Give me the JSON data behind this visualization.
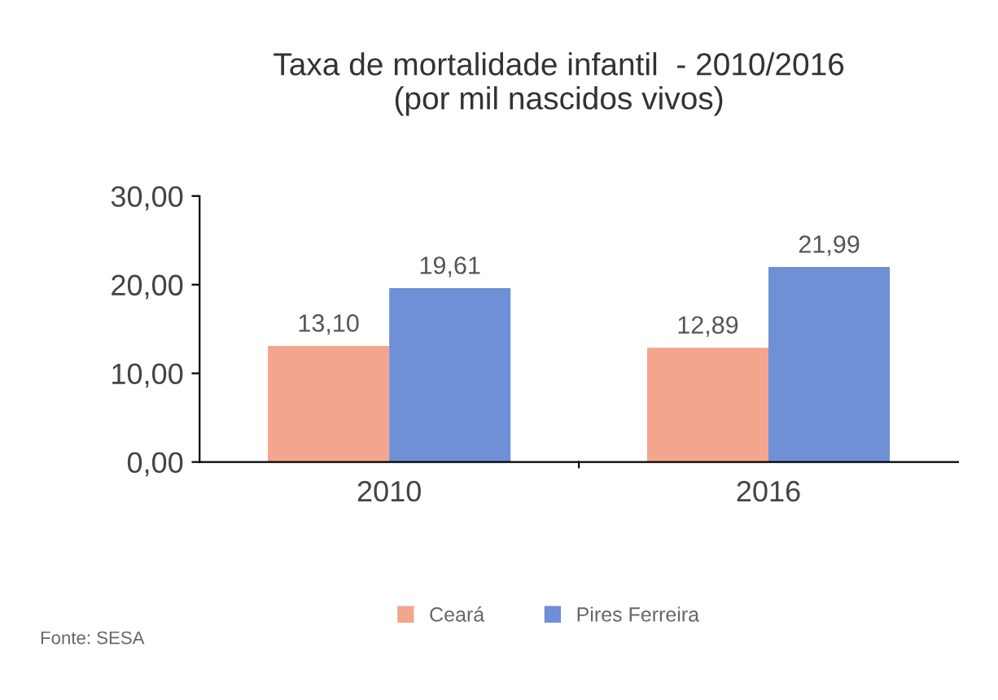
{
  "chart_data": {
    "type": "bar",
    "title": "Taxa de mortalidade infantil  - 2010/2016\n(por mil nascidos vivos)",
    "categories": [
      "2010",
      "2016"
    ],
    "series": [
      {
        "name": "Ceará",
        "color": "#f4a58e",
        "values": [
          13.1,
          12.89
        ],
        "value_labels": [
          "13,10",
          "12,89"
        ]
      },
      {
        "name": "Pires Ferreira",
        "color": "#6f8fd6",
        "values": [
          19.61,
          21.99
        ],
        "value_labels": [
          "19,61",
          "21,99"
        ]
      }
    ],
    "ylim": [
      0,
      30
    ],
    "yticks": [
      {
        "value": 0,
        "label": "0,00"
      },
      {
        "value": 10,
        "label": "10,00"
      },
      {
        "value": 20,
        "label": "20,00"
      },
      {
        "value": 30,
        "label": "30,00"
      }
    ],
    "grid": false,
    "legend": "bottom",
    "annotations": [
      "Fonte: SESA"
    ]
  }
}
